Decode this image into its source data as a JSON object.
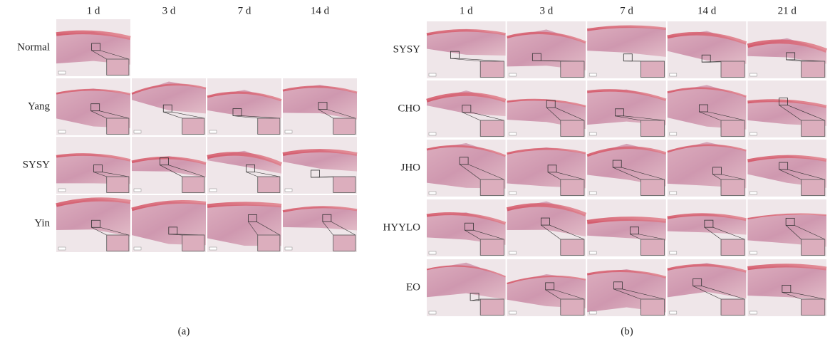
{
  "panel_a": {
    "columns": [
      "1 d",
      "3 d",
      "7 d",
      "14 d"
    ],
    "rows": [
      "Normal",
      "Yang",
      "SYSY",
      "Yin"
    ],
    "caption": "(a)"
  },
  "panel_b": {
    "columns": [
      "1 d",
      "3 d",
      "7 d",
      "14 d",
      "21 d"
    ],
    "rows": [
      "SYSY",
      "CHO",
      "JHO",
      "HYYLO",
      "EO"
    ],
    "caption": "(b)"
  }
}
